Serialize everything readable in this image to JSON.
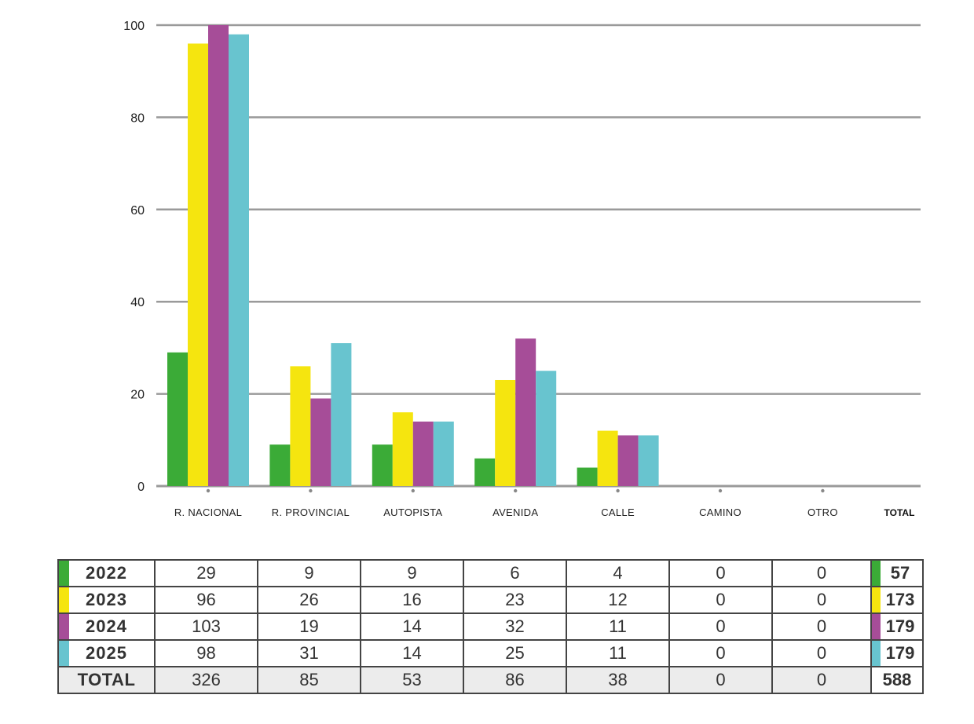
{
  "chart_data": {
    "type": "bar",
    "categories": [
      "R. NACIONAL",
      "R. PROVINCIAL",
      "AUTOPISTA",
      "AVENIDA",
      "CALLE",
      "CAMINO",
      "OTRO"
    ],
    "total_label": "TOTAL",
    "yticks": [
      "100",
      "80",
      "60",
      "40",
      "20",
      "0"
    ],
    "ylim": [
      0,
      100
    ],
    "grid": true,
    "series": [
      {
        "name": "2022",
        "color": "#3bab37",
        "values": [
          29,
          9,
          9,
          6,
          4,
          0,
          0
        ]
      },
      {
        "name": "2023",
        "color": "#f5e50f",
        "values": [
          96,
          26,
          16,
          23,
          12,
          0,
          0
        ]
      },
      {
        "name": "2024",
        "color": "#a64d98",
        "values": [
          103,
          19,
          14,
          32,
          11,
          0,
          0
        ]
      },
      {
        "name": "2025",
        "color": "#68c4cf",
        "values": [
          98,
          31,
          14,
          25,
          11,
          0,
          0
        ]
      }
    ]
  },
  "table": {
    "rows": [
      {
        "year": "2022",
        "color": "#3bab37",
        "cells": [
          "29",
          "9",
          "9",
          "6",
          "4",
          "0",
          "0"
        ],
        "total": "57"
      },
      {
        "year": "2023",
        "color": "#f5e50f",
        "cells": [
          "96",
          "26",
          "16",
          "23",
          "12",
          "0",
          "0"
        ],
        "total": "173"
      },
      {
        "year": "2024",
        "color": "#a64d98",
        "cells": [
          "103",
          "19",
          "14",
          "32",
          "11",
          "0",
          "0"
        ],
        "total": "179"
      },
      {
        "year": "2025",
        "color": "#68c4cf",
        "cells": [
          "98",
          "31",
          "14",
          "25",
          "11",
          "0",
          "0"
        ],
        "total": "179"
      }
    ],
    "total_row": {
      "label": "TOTAL",
      "cells": [
        "326",
        "85",
        "53",
        "86",
        "38",
        "0",
        "0"
      ],
      "total": "588"
    }
  }
}
